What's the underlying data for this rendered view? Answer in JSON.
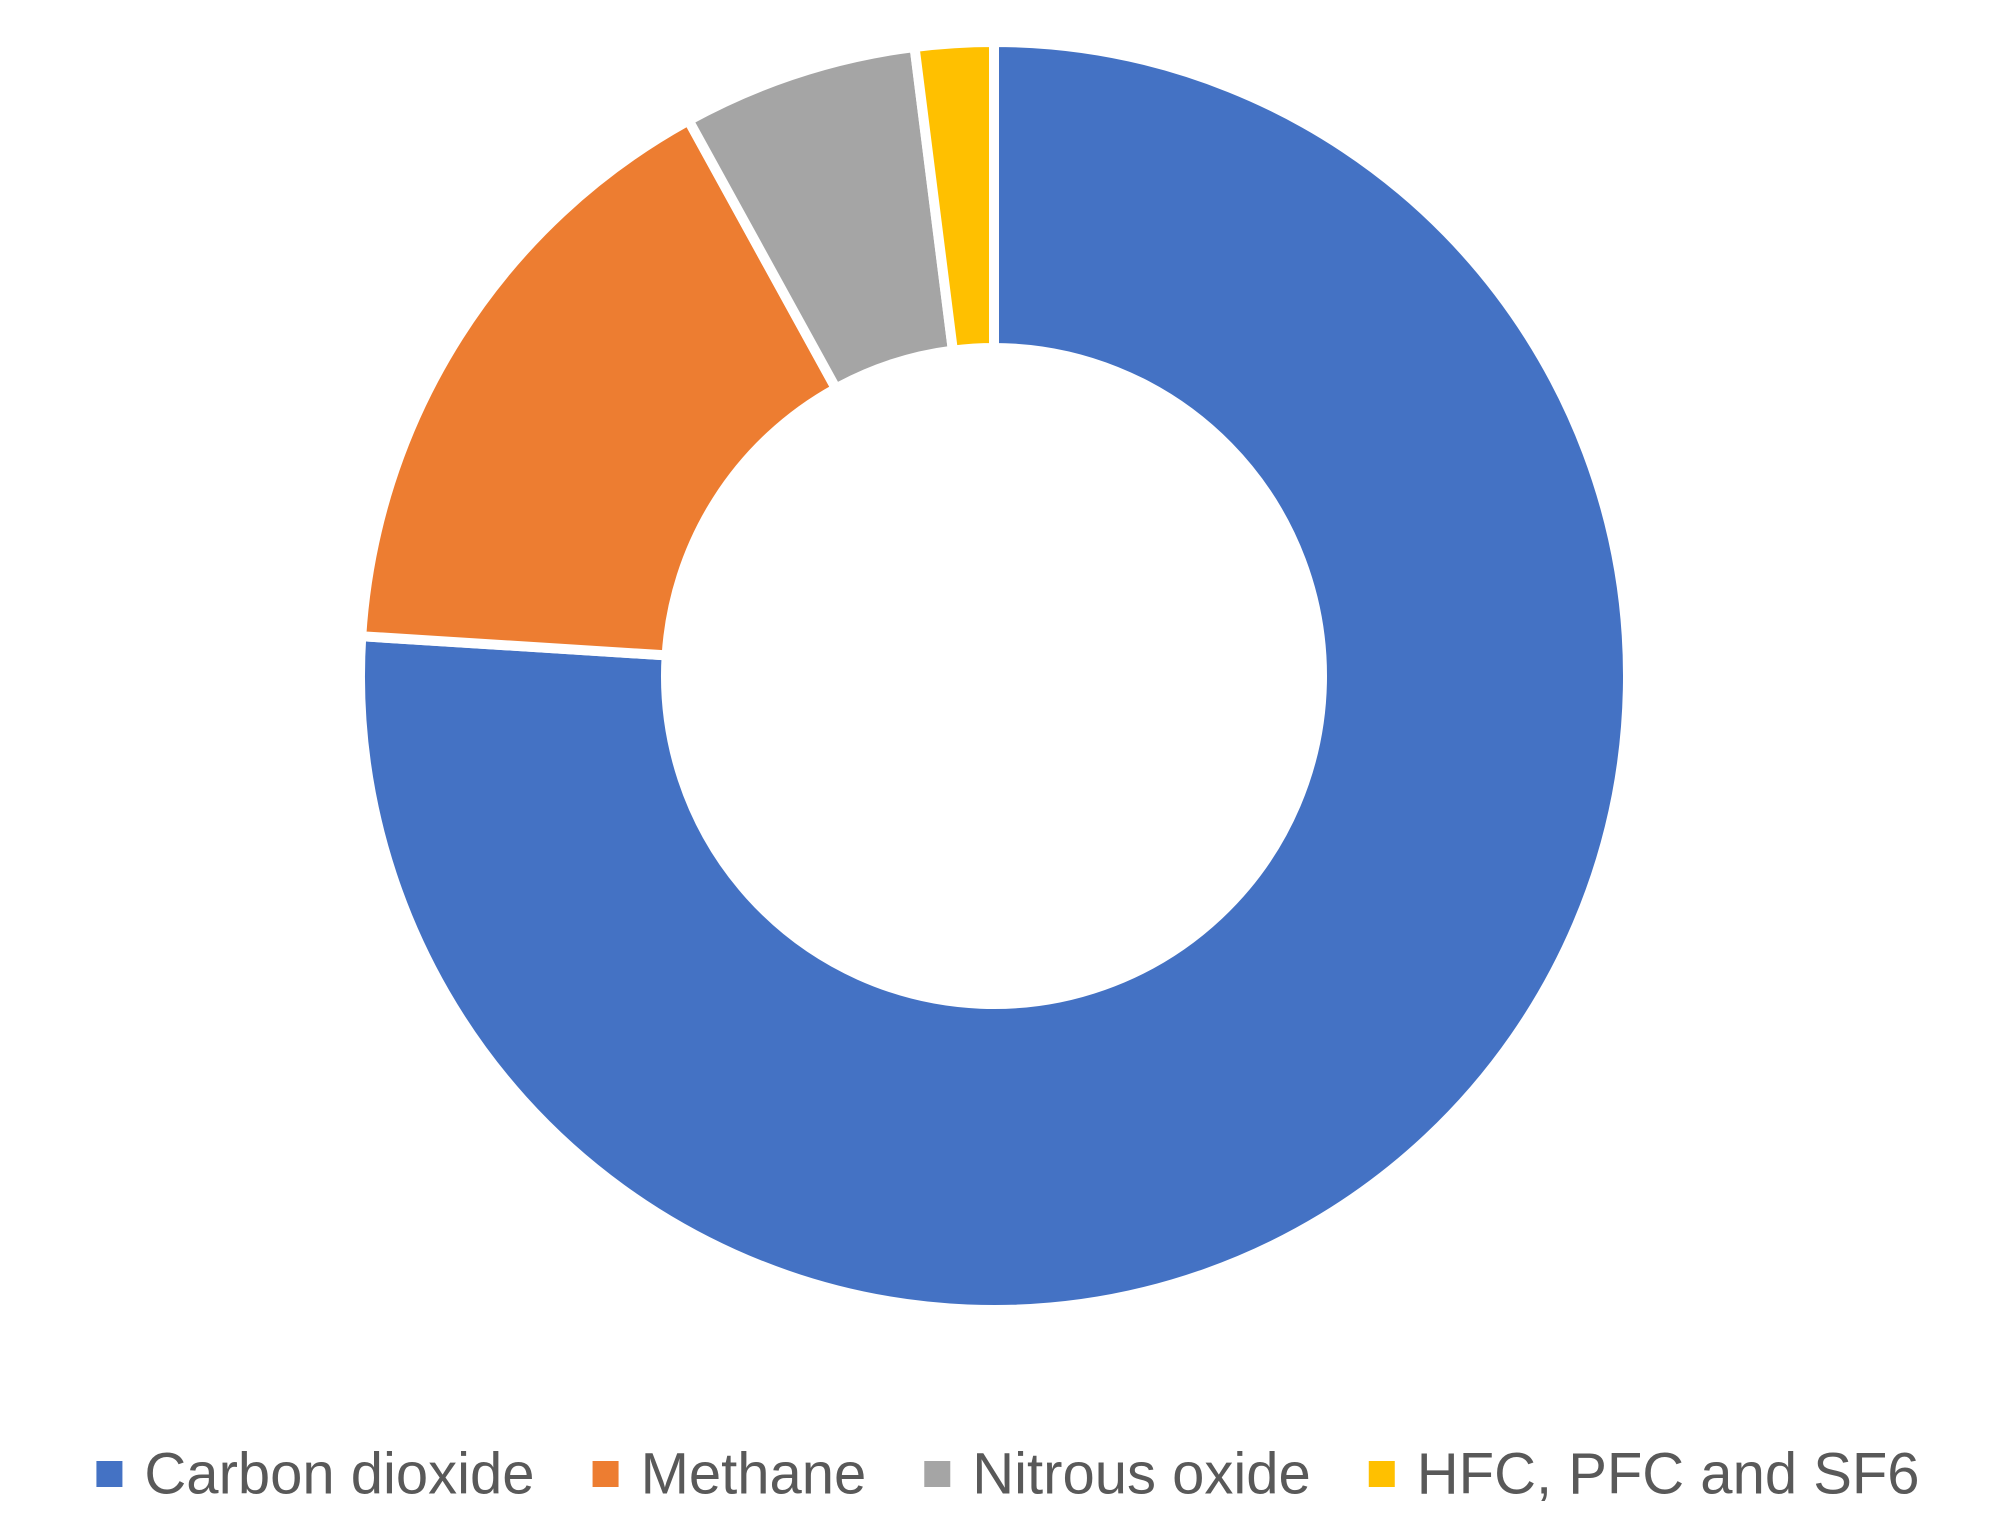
{
  "chart_data": {
    "type": "pie",
    "subtype": "donut",
    "title": "",
    "categories": [
      "Carbon dioxide",
      "Methane",
      "Nitrous oxide",
      "HFC, PFC and SF6"
    ],
    "values": [
      76,
      16,
      6,
      2
    ],
    "colors": [
      "#4472C4",
      "#ED7D31",
      "#A5A5A5",
      "#FFC000"
    ],
    "legend": {
      "position": "bottom",
      "entries": [
        "Carbon dioxide",
        "Methane",
        "Nitrous oxide",
        "HFC, PFC and SF6"
      ]
    },
    "data_labels": false
  }
}
